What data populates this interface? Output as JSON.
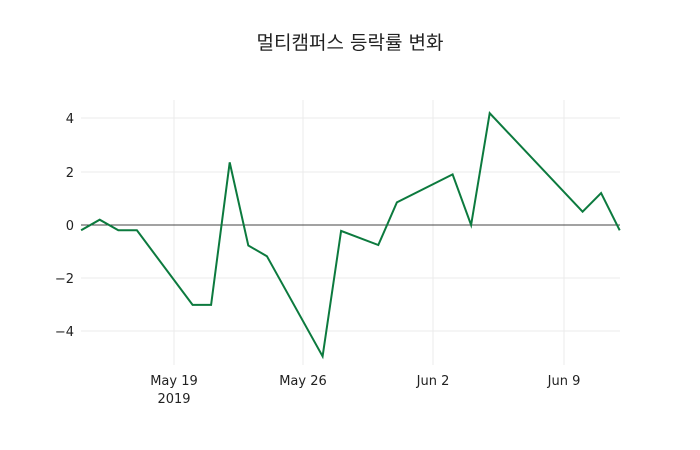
{
  "chart_data": {
    "type": "line",
    "title": "멀티캠퍼스 등락률 변화",
    "xlabel": "",
    "ylabel": "",
    "ylim": [
      -5.3,
      4.7
    ],
    "grid": true,
    "legend": "none",
    "line_color": "#0c7a3e",
    "x_ticks": [
      "May 19\n2019",
      "May 26",
      "Jun 2",
      "Jun 9"
    ],
    "y_ticks": [
      4,
      2,
      0,
      -2,
      -4
    ],
    "series": [
      {
        "name": "등락률",
        "x": [
          "2019-05-14",
          "2019-05-15",
          "2019-05-16",
          "2019-05-17",
          "2019-05-20",
          "2019-05-21",
          "2019-05-22",
          "2019-05-23",
          "2019-05-24",
          "2019-05-27",
          "2019-05-28",
          "2019-05-30",
          "2019-05-31",
          "2019-06-03",
          "2019-06-04",
          "2019-06-05",
          "2019-06-10",
          "2019-06-11",
          "2019-06-12"
        ],
        "values": [
          -0.2,
          0.2,
          -0.2,
          -0.2,
          -3.0,
          -3.0,
          2.35,
          -0.77,
          -1.17,
          -4.93,
          -0.22,
          -0.75,
          0.85,
          1.9,
          0.0,
          4.2,
          0.5,
          1.2,
          -0.2
        ]
      }
    ]
  },
  "labels": {
    "title": "멀티캠퍼스 등락률 변화",
    "x": [
      "May 19",
      "May 26",
      "Jun 2",
      "Jun 9"
    ],
    "x_year": "2019",
    "y": [
      "4",
      "2",
      "0",
      "−2",
      "−4"
    ]
  }
}
